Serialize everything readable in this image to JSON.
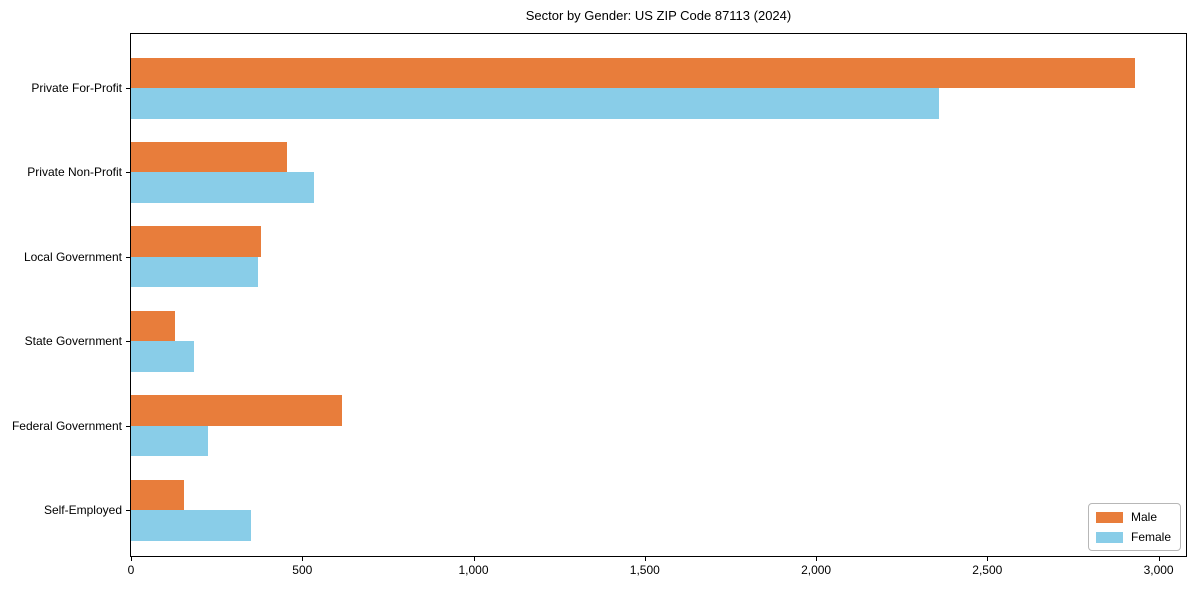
{
  "title": "Sector by Gender: US ZIP Code 87113 (2024)",
  "chart_data": {
    "type": "bar",
    "orientation": "horizontal",
    "title": "Sector by Gender: US ZIP Code 87113 (2024)",
    "xlabel": "",
    "ylabel": "",
    "categories": [
      "Private For-Profit",
      "Private Non-Profit",
      "Local Government",
      "State Government",
      "Federal Government",
      "Self-Employed"
    ],
    "series": [
      {
        "name": "Male",
        "color": "#E87D3B",
        "values": [
          2930,
          455,
          380,
          128,
          615,
          156
        ]
      },
      {
        "name": "Female",
        "color": "#89CDE8",
        "values": [
          2360,
          535,
          372,
          184,
          224,
          350
        ]
      }
    ],
    "xlim": [
      0,
      3080
    ],
    "xticks": [
      0,
      500,
      1000,
      1500,
      2000,
      2500,
      3000
    ],
    "xtick_labels": [
      "0",
      "500",
      "1,000",
      "1,500",
      "2,000",
      "2,500",
      "3,000"
    ],
    "grid": false,
    "legend_position": "lower right",
    "legend_labels": [
      "Male",
      "Female"
    ],
    "category_order_top_to_bottom": true
  },
  "colors": {
    "male": "#E87D3B",
    "female": "#89CDE8",
    "spine": "#000000",
    "background": "#ffffff"
  }
}
